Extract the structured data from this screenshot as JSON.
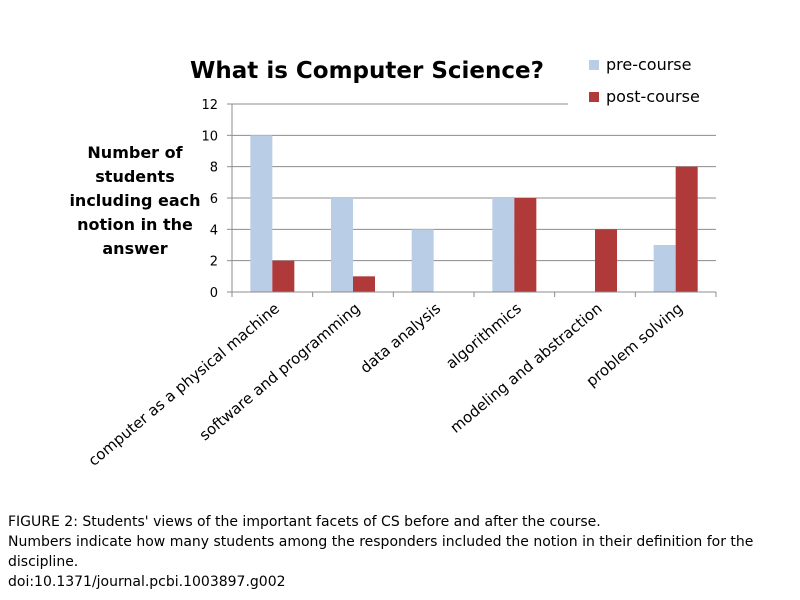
{
  "chart_data": {
    "type": "bar",
    "title": "What is Computer Science?",
    "ylabel": "Number of students including each notion in the answer",
    "ylabel_lines": [
      "Number of",
      "students",
      "including each",
      "notion in the",
      "answer"
    ],
    "xlabel": "",
    "ylim": [
      0,
      12
    ],
    "yticks": [
      0,
      2,
      4,
      6,
      8,
      10,
      12
    ],
    "grid": true,
    "legend_position": "top-right",
    "categories": [
      "computer as a physical machine",
      "software and programming",
      "data analysis",
      "algorithmics",
      "modeling and abstraction",
      "problem solving"
    ],
    "series": [
      {
        "name": "pre-course",
        "color": "#b9cde6",
        "values": [
          10,
          6,
          4,
          6,
          0,
          3
        ]
      },
      {
        "name": "post-course",
        "color": "#b0393a",
        "values": [
          2,
          1,
          0,
          6,
          4,
          8
        ]
      }
    ]
  },
  "caption": {
    "line1": "FIGURE 2: Students' views of the important facets of CS before and after the course.",
    "line2": "Numbers indicate how many students among the responders included the notion in their definition for the discipline.",
    "line3": "doi:10.1371/journal.pcbi.1003897.g002"
  }
}
